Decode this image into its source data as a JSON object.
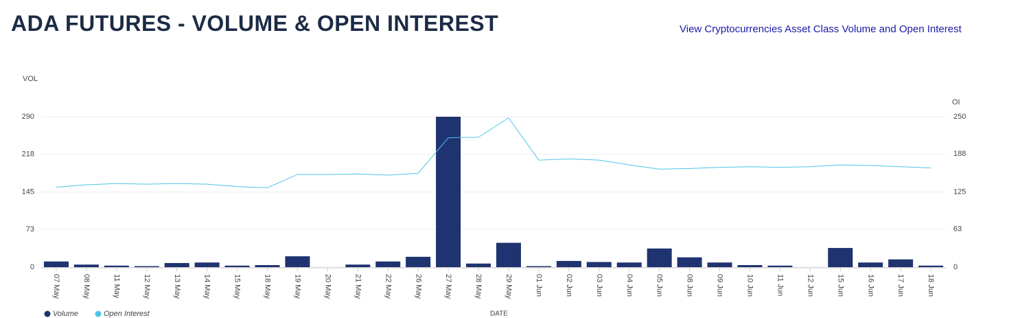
{
  "header": {
    "title": "ADA FUTURES - VOLUME & OPEN INTEREST",
    "link": "View Cryptocurrencies Asset Class Volume and Open Interest"
  },
  "chart_data": {
    "type": "bar-line",
    "y_label": "VOL",
    "y2_label": "OI",
    "x_label": "DATE",
    "categories": [
      "07 May",
      "08 May",
      "11 May",
      "12 May",
      "13 May",
      "14 May",
      "15 May",
      "18 May",
      "19 May",
      "20 May",
      "21 May",
      "22 May",
      "26 May",
      "27 May",
      "28 May",
      "29 May",
      "01 Jun",
      "02 Jun",
      "03 Jun",
      "04 Jun",
      "05 Jun",
      "08 Jun",
      "09 Jun",
      "10 Jun",
      "11 Jun",
      "12 Jun",
      "15 Jun",
      "16 Jun",
      "17 Jun",
      "18 Jun"
    ],
    "series": [
      {
        "name": "Volume",
        "color": "#1f3370",
        "type": "bar",
        "values": [
          11,
          5,
          3,
          2,
          8,
          9,
          3,
          4,
          21,
          0,
          5,
          11,
          20,
          290,
          7,
          47,
          2,
          12,
          10,
          9,
          36,
          19,
          9,
          4,
          3,
          0,
          37,
          9,
          15,
          3
        ]
      },
      {
        "name": "Open Interest",
        "color": "#4fc3e8",
        "type": "line",
        "axis": "y2",
        "values": [
          133,
          137,
          139,
          138,
          139,
          138,
          134,
          132,
          154,
          154,
          155,
          153,
          156,
          215,
          216,
          248,
          178,
          180,
          178,
          170,
          163,
          164,
          166,
          167,
          166,
          167,
          170,
          169,
          167,
          165
        ]
      }
    ],
    "ylim": [
      0,
      290
    ],
    "yticks": [
      0,
      73,
      145,
      218,
      290
    ],
    "y2lim": [
      0,
      250
    ],
    "y2ticks": [
      0,
      63,
      125,
      188,
      250
    ],
    "grid": true
  }
}
